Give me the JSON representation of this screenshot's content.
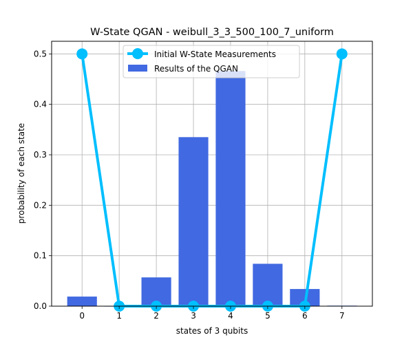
{
  "chart_data": {
    "type": "bar",
    "title": "W-State QGAN - weibull_3_3_500_100_7_uniform",
    "xlabel": "states of 3 qubits",
    "ylabel": "probability of each state",
    "categories": [
      "0",
      "1",
      "2",
      "3",
      "4",
      "5",
      "6",
      "7"
    ],
    "xlim": [
      -0.82,
      7.82
    ],
    "ylim": [
      0,
      0.525
    ],
    "yticks": [
      0.0,
      0.1,
      0.2,
      0.3,
      0.4,
      0.5
    ],
    "ytick_labels": [
      "0.0",
      "0.1",
      "0.2",
      "0.3",
      "0.4",
      "0.5"
    ],
    "grid": true,
    "legend_position": "top-center",
    "series": [
      {
        "name": "Results of the QGAN",
        "kind": "bar",
        "color": "#4169e1",
        "values": [
          0.019,
          0.0,
          0.057,
          0.335,
          0.466,
          0.084,
          0.034,
          0.001
        ]
      },
      {
        "name": "Initial W-State Measurements",
        "kind": "line",
        "color": "#00bfff",
        "values": [
          0.5,
          0.0,
          0.0,
          0.0,
          0.0,
          0.0,
          0.0,
          0.5
        ]
      }
    ]
  }
}
